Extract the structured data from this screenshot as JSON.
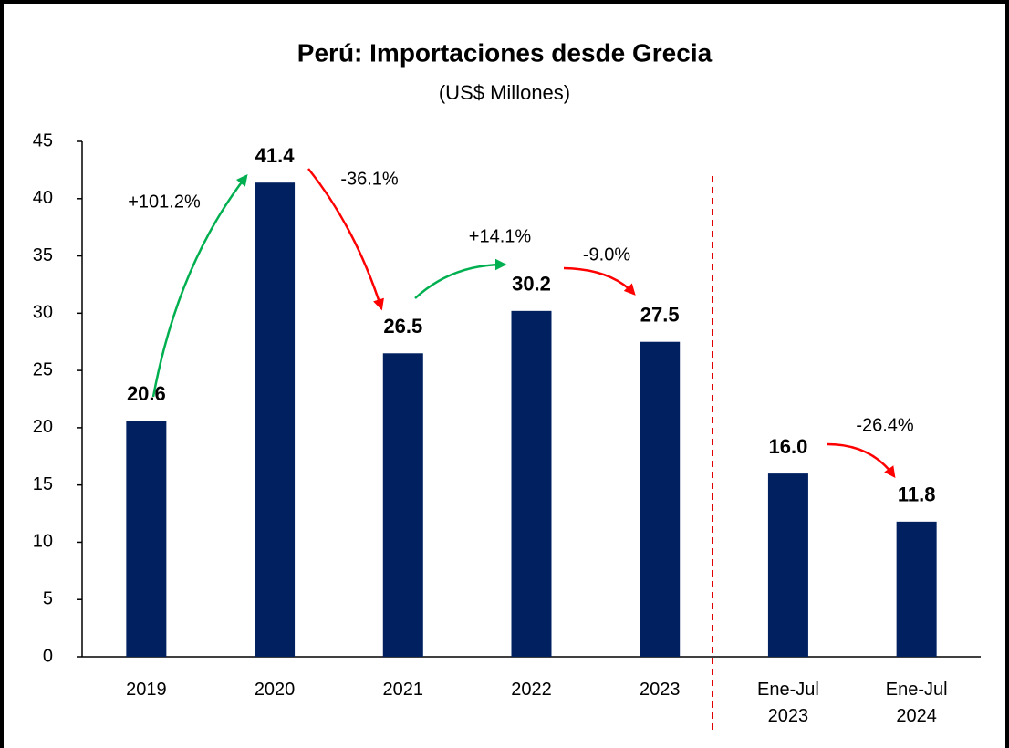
{
  "chart_data": {
    "type": "bar",
    "title": "Perú: Importaciones desde Grecia",
    "subtitle": "(US$ Millones)",
    "categories": [
      "2019",
      "2020",
      "2021",
      "2022",
      "2023",
      "Ene-Jul 2023",
      "Ene-Jul 2024"
    ],
    "values": [
      20.6,
      41.4,
      26.5,
      30.2,
      27.5,
      16.0,
      11.8
    ],
    "value_labels": [
      "20.6",
      "41.4",
      "26.5",
      "30.2",
      "27.5",
      "16.0",
      "11.8"
    ],
    "color": "#002060",
    "ylim": [
      0,
      45
    ],
    "yticks": [
      0,
      5,
      10,
      15,
      20,
      25,
      30,
      35,
      40,
      45
    ],
    "grid": false,
    "annotations": [
      {
        "text": "+101.2%",
        "color": "#00b050"
      },
      {
        "text": "-36.1%",
        "color": "#ff0000"
      },
      {
        "text": "+14.1%",
        "color": "#00b050"
      },
      {
        "text": "-9.0%",
        "color": "#ff0000"
      },
      {
        "text": "-26.4%",
        "color": "#ff0000"
      }
    ]
  }
}
